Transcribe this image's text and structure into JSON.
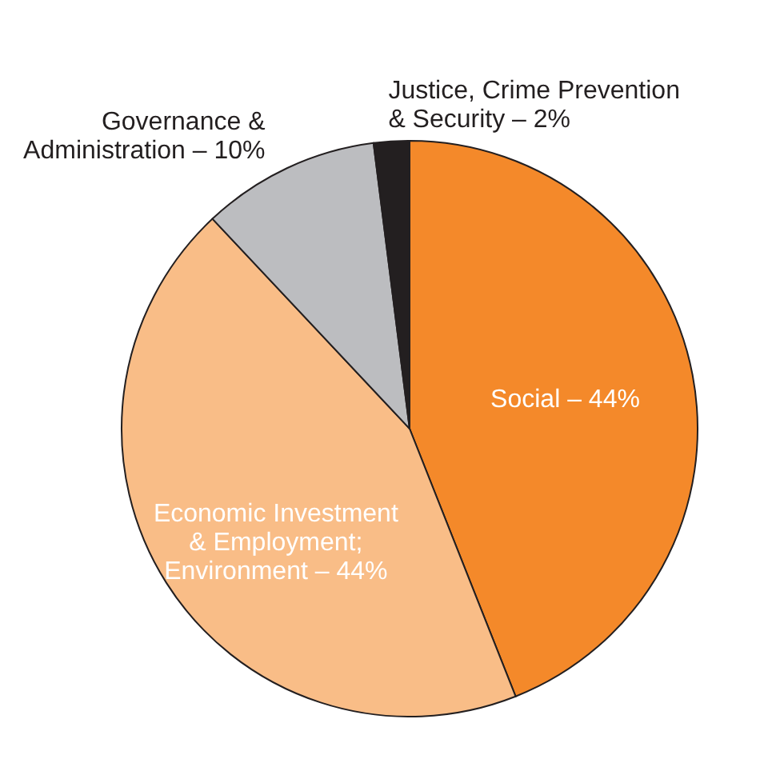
{
  "chart_data": {
    "type": "pie",
    "categories": [
      "Social – 44%",
      "Economic Investment\n& Employment;\nEnvironment – 44%",
      "Governance &\nAdministration – 10%",
      "Justice, Crime Prevention\n& Security – 2%"
    ],
    "values": [
      44,
      44,
      10,
      2
    ],
    "colors": [
      "#f4892a",
      "#f9bd87",
      "#bcbdc0",
      "#231f20"
    ]
  }
}
